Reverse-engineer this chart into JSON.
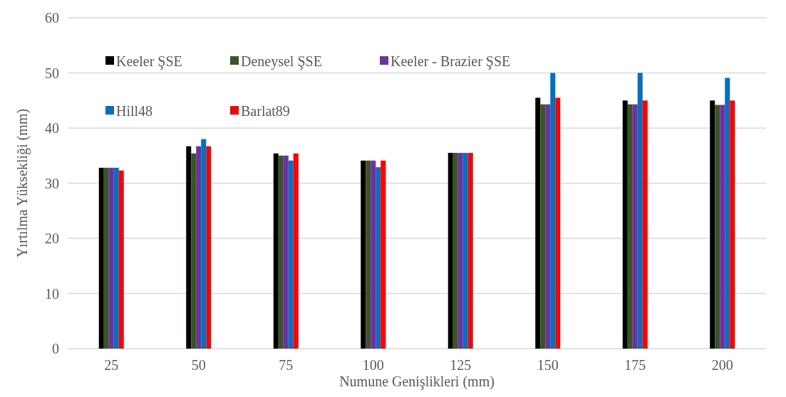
{
  "chart_data": {
    "type": "bar",
    "xlabel": "Numune Genişlikleri (mm)",
    "ylabel": "Yırtılma Yüksekliği (mm)",
    "categories": [
      "25",
      "50",
      "75",
      "100",
      "125",
      "150",
      "175",
      "200"
    ],
    "series": [
      {
        "name": "Keeler ŞSE",
        "color": "#000000",
        "values": [
          32.8,
          36.7,
          35.4,
          34.1,
          35.5,
          45.5,
          45,
          45
        ]
      },
      {
        "name": "Deneysel ŞSE",
        "color": "#375623",
        "values": [
          32.8,
          35.4,
          35,
          34.1,
          35.5,
          44.3,
          44.3,
          44.2
        ]
      },
      {
        "name": "Keeler - Brazier ŞSE",
        "color": "#7030a0",
        "values": [
          32.8,
          36.7,
          35,
          34.1,
          35.5,
          44.3,
          44.3,
          44.2
        ]
      },
      {
        "name": "Hill48",
        "color": "#0070c0",
        "values": [
          32.8,
          38,
          34.1,
          32.9,
          35.5,
          50,
          50,
          49.1
        ]
      },
      {
        "name": "Barlat89",
        "color": "#ff0000",
        "values": [
          32.3,
          36.7,
          35.4,
          34.1,
          35.5,
          45.5,
          45,
          45
        ]
      }
    ],
    "ylim": [
      0,
      60
    ],
    "yticks": [
      0,
      10,
      20,
      30,
      40,
      50,
      60
    ],
    "grid": "y",
    "legend": "top"
  }
}
